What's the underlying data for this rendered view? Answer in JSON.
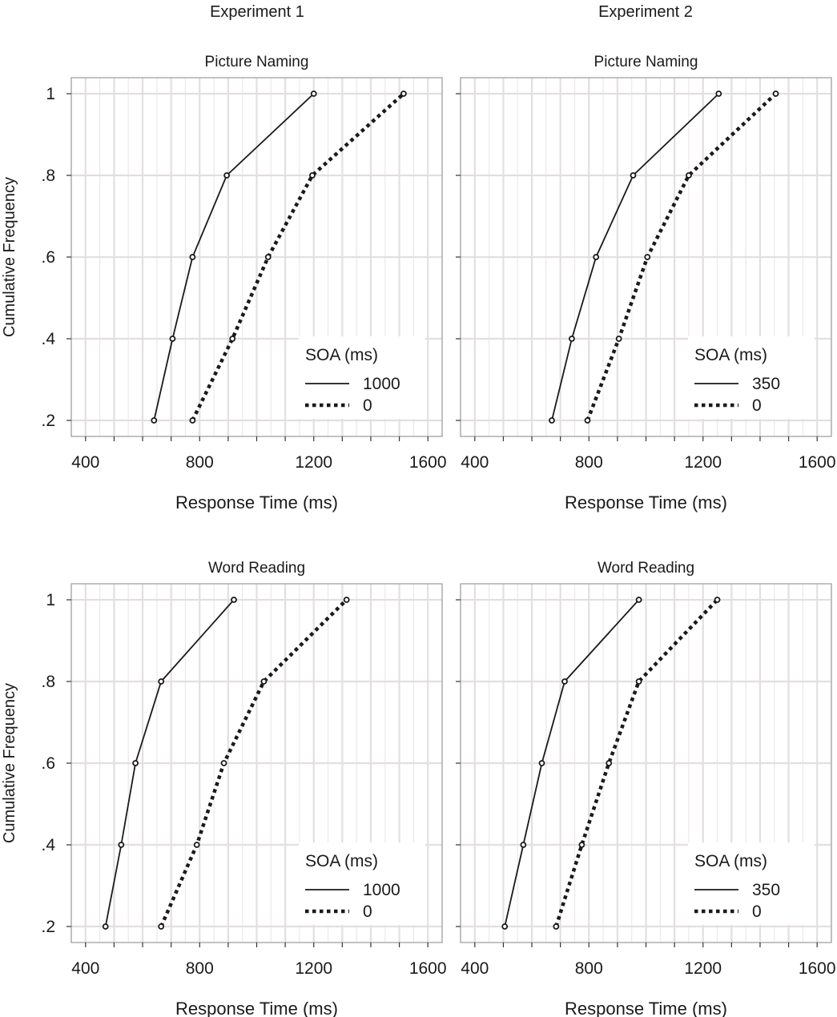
{
  "columns": [
    "Experiment 1",
    "Experiment 2"
  ],
  "chart_data": [
    {
      "type": "line",
      "title": "Picture Naming",
      "xlabel": "Response Time (ms)",
      "ylabel": "Cumulative Frequency",
      "xlim": [
        350,
        1650
      ],
      "xticks": [
        400,
        800,
        1200,
        1600
      ],
      "yticks": [
        0.2,
        0.4,
        0.6,
        0.8,
        1.0
      ],
      "ytick_labels": [
        ".2",
        ".4",
        ".6",
        ".8",
        "1"
      ],
      "legend_title": "SOA (ms)",
      "legend_position": "bottom-right",
      "grid": true,
      "series": [
        {
          "name": "1000",
          "style": "solid",
          "x": [
            640,
            705,
            775,
            895,
            1200
          ],
          "y": [
            0.2,
            0.4,
            0.6,
            0.8,
            1.0
          ]
        },
        {
          "name": "0",
          "style": "dotted",
          "x": [
            775,
            915,
            1040,
            1195,
            1515
          ],
          "y": [
            0.2,
            0.4,
            0.6,
            0.8,
            1.0
          ]
        }
      ]
    },
    {
      "type": "line",
      "title": "Picture Naming",
      "xlabel": "Response Time (ms)",
      "ylabel": "",
      "xlim": [
        350,
        1650
      ],
      "xticks": [
        400,
        800,
        1200,
        1600
      ],
      "yticks": [
        0.2,
        0.4,
        0.6,
        0.8,
        1.0
      ],
      "ytick_labels": [
        "",
        "",
        "",
        "",
        ""
      ],
      "legend_title": "SOA (ms)",
      "legend_position": "bottom-right",
      "grid": true,
      "series": [
        {
          "name": "350",
          "style": "solid",
          "x": [
            670,
            740,
            825,
            955,
            1255
          ],
          "y": [
            0.2,
            0.4,
            0.6,
            0.8,
            1.0
          ]
        },
        {
          "name": "0",
          "style": "dotted",
          "x": [
            795,
            905,
            1005,
            1150,
            1455
          ],
          "y": [
            0.2,
            0.4,
            0.6,
            0.8,
            1.0
          ]
        }
      ]
    },
    {
      "type": "line",
      "title": "Word Reading",
      "xlabel": "Response Time (ms)",
      "ylabel": "Cumulative Frequency",
      "xlim": [
        350,
        1650
      ],
      "xticks": [
        400,
        800,
        1200,
        1600
      ],
      "yticks": [
        0.2,
        0.4,
        0.6,
        0.8,
        1.0
      ],
      "ytick_labels": [
        ".2",
        ".4",
        ".6",
        ".8",
        "1"
      ],
      "legend_title": "SOA (ms)",
      "legend_position": "bottom-right",
      "grid": true,
      "series": [
        {
          "name": "1000",
          "style": "solid",
          "x": [
            470,
            525,
            575,
            665,
            920
          ],
          "y": [
            0.2,
            0.4,
            0.6,
            0.8,
            1.0
          ]
        },
        {
          "name": "0",
          "style": "dotted",
          "x": [
            665,
            790,
            885,
            1025,
            1315
          ],
          "y": [
            0.2,
            0.4,
            0.6,
            0.8,
            1.0
          ]
        }
      ]
    },
    {
      "type": "line",
      "title": "Word Reading",
      "xlabel": "Response Time (ms)",
      "ylabel": "",
      "xlim": [
        350,
        1650
      ],
      "xticks": [
        400,
        800,
        1200,
        1600
      ],
      "yticks": [
        0.2,
        0.4,
        0.6,
        0.8,
        1.0
      ],
      "ytick_labels": [
        "",
        "",
        "",
        "",
        ""
      ],
      "legend_title": "SOA (ms)",
      "legend_position": "bottom-right",
      "grid": true,
      "series": [
        {
          "name": "350",
          "style": "solid",
          "x": [
            505,
            570,
            635,
            715,
            975
          ],
          "y": [
            0.2,
            0.4,
            0.6,
            0.8,
            1.0
          ]
        },
        {
          "name": "0",
          "style": "dotted",
          "x": [
            685,
            775,
            870,
            975,
            1250
          ],
          "y": [
            0.2,
            0.4,
            0.6,
            0.8,
            1.0
          ]
        }
      ]
    }
  ]
}
